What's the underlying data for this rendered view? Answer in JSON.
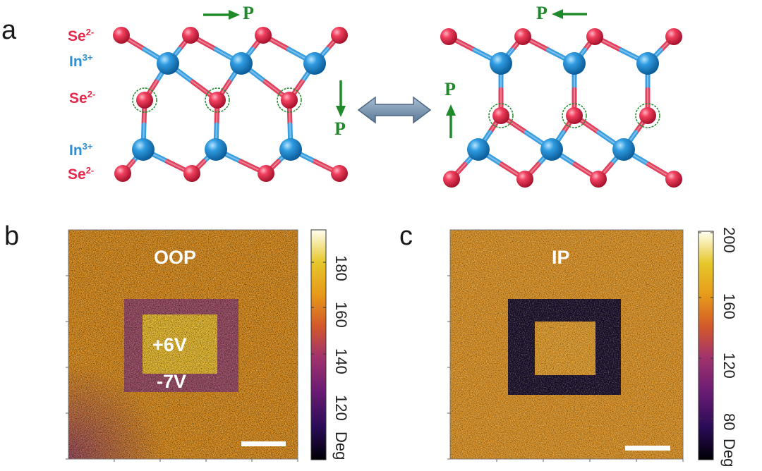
{
  "panel_a": {
    "label": "a",
    "ions": [
      {
        "text": "Se",
        "charge": "2-",
        "kind": "se"
      },
      {
        "text": "In",
        "charge": "3+",
        "kind": "in"
      },
      {
        "text": "Se",
        "charge": "2-",
        "kind": "se"
      },
      {
        "text": "In",
        "charge": "3+",
        "kind": "in"
      },
      {
        "text": "Se",
        "charge": "2-",
        "kind": "se"
      }
    ],
    "polarization_symbol": "P"
  },
  "panel_b": {
    "label": "b",
    "map_title": "OOP",
    "inner_label": "+6V",
    "outer_label": "-7V",
    "colorbar": {
      "ticks": [
        "180",
        "160",
        "140",
        "120"
      ],
      "unit": "Deg",
      "range": [
        110,
        195
      ]
    }
  },
  "panel_c": {
    "label": "c",
    "map_title": "IP",
    "colorbar": {
      "ticks": [
        "200",
        "160",
        "120",
        "80"
      ],
      "unit": "Deg",
      "range": [
        60,
        205
      ]
    }
  },
  "colors": {
    "selenium": "#e8274b",
    "indium": "#2a8fd6",
    "arrow_green": "#1f8a2a",
    "map_base": "#d98a1c",
    "map_dark": "#1a0f2e"
  }
}
